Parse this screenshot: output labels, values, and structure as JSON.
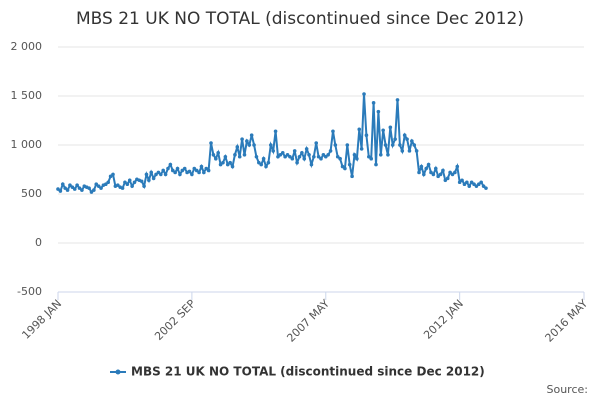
{
  "chart_data": {
    "type": "line",
    "title": "MBS 21 UK NO TOTAL (discontinued since Dec 2012)",
    "source": "Source:",
    "x": [
      "1998 JAN",
      "1998 FEB",
      "1998 MAR",
      "1998 APR",
      "1998 MAY",
      "1998 JUN",
      "1998 JUL",
      "1998 AUG",
      "1998 SEP",
      "1998 OCT",
      "1998 NOV",
      "1998 DEC",
      "1999 JAN",
      "1999 FEB",
      "1999 MAR",
      "1999 APR",
      "1999 MAY",
      "1999 JUN",
      "1999 JUL",
      "1999 AUG",
      "1999 SEP",
      "1999 OCT",
      "1999 NOV",
      "1999 DEC",
      "2000 JAN",
      "2000 FEB",
      "2000 MAR",
      "2000 APR",
      "2000 MAY",
      "2000 JUN",
      "2000 JUL",
      "2000 AUG",
      "2000 SEP",
      "2000 OCT",
      "2000 NOV",
      "2000 DEC",
      "2001 JAN",
      "2001 FEB",
      "2001 MAR",
      "2001 APR",
      "2001 MAY",
      "2001 JUN",
      "2001 JUL",
      "2001 AUG",
      "2001 SEP",
      "2001 OCT",
      "2001 NOV",
      "2001 DEC",
      "2002 JAN",
      "2002 FEB",
      "2002 MAR",
      "2002 APR",
      "2002 MAY",
      "2002 JUN",
      "2002 JUL",
      "2002 AUG",
      "2002 SEP",
      "2002 OCT",
      "2002 NOV",
      "2002 DEC",
      "2003 JAN",
      "2003 FEB",
      "2003 MAR",
      "2003 APR",
      "2003 MAY",
      "2003 JUN",
      "2003 JUL",
      "2003 AUG",
      "2003 SEP",
      "2003 OCT",
      "2003 NOV",
      "2003 DEC",
      "2004 JAN",
      "2004 FEB",
      "2004 MAR",
      "2004 APR",
      "2004 MAY",
      "2004 JUN",
      "2004 JUL",
      "2004 AUG",
      "2004 SEP",
      "2004 OCT",
      "2004 NOV",
      "2004 DEC",
      "2005 JAN",
      "2005 FEB",
      "2005 MAR",
      "2005 APR",
      "2005 MAY",
      "2005 JUN",
      "2005 JUL",
      "2005 AUG",
      "2005 SEP",
      "2005 OCT",
      "2005 NOV",
      "2005 DEC",
      "2006 JAN",
      "2006 FEB",
      "2006 MAR",
      "2006 APR",
      "2006 MAY",
      "2006 JUN",
      "2006 JUL",
      "2006 AUG",
      "2006 SEP",
      "2006 OCT",
      "2006 NOV",
      "2006 DEC",
      "2007 JAN",
      "2007 FEB",
      "2007 MAR",
      "2007 APR",
      "2007 MAY",
      "2007 JUN",
      "2007 JUL",
      "2007 AUG",
      "2007 SEP",
      "2007 OCT",
      "2007 NOV",
      "2007 DEC",
      "2008 JAN",
      "2008 FEB",
      "2008 MAR",
      "2008 APR",
      "2008 MAY",
      "2008 JUN",
      "2008 JUL",
      "2008 AUG",
      "2008 SEP",
      "2008 OCT",
      "2008 NOV",
      "2008 DEC",
      "2009 JAN",
      "2009 FEB",
      "2009 MAR",
      "2009 APR",
      "2009 MAY",
      "2009 JUN",
      "2009 JUL",
      "2009 AUG",
      "2009 SEP",
      "2009 OCT",
      "2009 NOV",
      "2009 DEC",
      "2010 JAN",
      "2010 FEB",
      "2010 MAR",
      "2010 APR",
      "2010 MAY",
      "2010 JUN",
      "2010 JUL",
      "2010 AUG",
      "2010 SEP",
      "2010 OCT",
      "2010 NOV",
      "2010 DEC",
      "2011 JAN",
      "2011 FEB",
      "2011 MAR",
      "2011 APR",
      "2011 MAY",
      "2011 JUN",
      "2011 JUL",
      "2011 AUG",
      "2011 SEP",
      "2011 OCT",
      "2011 NOV",
      "2011 DEC",
      "2012 JAN",
      "2012 FEB",
      "2012 MAR",
      "2012 APR",
      "2012 MAY",
      "2012 JUN",
      "2012 JUL",
      "2012 AUG",
      "2012 SEP",
      "2012 OCT",
      "2012 NOV",
      "2012 DEC"
    ],
    "series": [
      {
        "name": "MBS 21 UK NO TOTAL (discontinued since Dec 2012)",
        "color": "#2b7bba",
        "values": [
          550,
          530,
          600,
          560,
          540,
          590,
          570,
          550,
          590,
          560,
          540,
          580,
          570,
          560,
          520,
          540,
          600,
          580,
          560,
          590,
          600,
          620,
          680,
          700,
          580,
          590,
          570,
          560,
          620,
          600,
          640,
          580,
          620,
          650,
          640,
          630,
          580,
          700,
          640,
          720,
          660,
          700,
          720,
          700,
          740,
          700,
          760,
          800,
          740,
          720,
          760,
          700,
          740,
          760,
          720,
          730,
          700,
          760,
          740,
          720,
          780,
          720,
          760,
          740,
          1020,
          900,
          860,
          920,
          800,
          820,
          880,
          800,
          820,
          780,
          900,
          980,
          880,
          1060,
          900,
          1040,
          1000,
          1100,
          1000,
          880,
          820,
          800,
          860,
          780,
          820,
          1000,
          940,
          1140,
          880,
          900,
          920,
          880,
          900,
          880,
          860,
          940,
          820,
          880,
          920,
          860,
          960,
          900,
          800,
          880,
          1020,
          880,
          860,
          900,
          880,
          900,
          940,
          1140,
          1000,
          880,
          860,
          780,
          760,
          1000,
          800,
          680,
          900,
          860,
          1160,
          960,
          1520,
          1100,
          880,
          860,
          1430,
          800,
          1340,
          900,
          1150,
          1000,
          900,
          1180,
          1000,
          1060,
          1460,
          1000,
          940,
          1100,
          1060,
          940,
          1040,
          1000,
          940,
          720,
          780,
          700,
          760,
          800,
          720,
          700,
          760,
          680,
          700,
          740,
          640,
          660,
          720,
          700,
          720,
          780,
          620,
          640,
          600,
          620,
          580,
          620,
          600,
          580,
          600,
          620,
          580,
          560
        ]
      }
    ],
    "xlim": [
      "1998 JAN",
      "2016 MAY"
    ],
    "xticks": [
      "1998 JAN",
      "2002 SEP",
      "2007 MAY",
      "2012 JAN",
      "2016 MAY"
    ],
    "ylim": [
      -500,
      2000
    ],
    "yticks": [
      {
        "value": 2000,
        "label": "2 000"
      },
      {
        "value": 1500,
        "label": "1 500"
      },
      {
        "value": 1000,
        "label": "1 000"
      },
      500,
      0,
      -500
    ],
    "grid": true
  }
}
